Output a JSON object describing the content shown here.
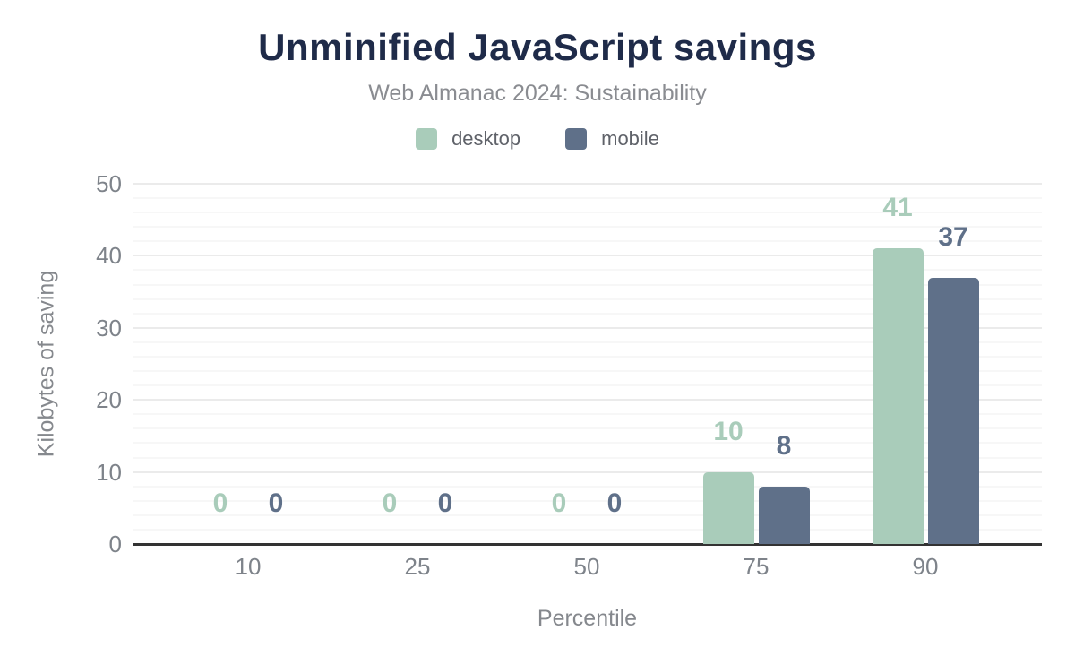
{
  "chart_data": {
    "type": "bar",
    "title": "Unminified JavaScript savings",
    "subtitle": "Web Almanac 2024: Sustainability",
    "categories": [
      "10",
      "25",
      "50",
      "75",
      "90"
    ],
    "series": [
      {
        "name": "desktop",
        "color": "#a9ccba",
        "values": [
          0,
          0,
          0,
          10,
          41
        ]
      },
      {
        "name": "mobile",
        "color": "#5f7089",
        "values": [
          0,
          0,
          0,
          8,
          37
        ]
      }
    ],
    "xlabel": "Percentile",
    "ylabel": "Kilobytes of saving",
    "ylim": [
      0,
      50
    ],
    "yticks": [
      0,
      10,
      20,
      30,
      40,
      50
    ],
    "minor_grid_step": 2,
    "grid": "horizontal",
    "legend_position": "top",
    "value_labels": true
  },
  "colors": {
    "title": "#1f2b49",
    "subtitle": "#8a8c91",
    "legend_text": "#5f6269",
    "axis_text": "#7e838a",
    "axis_title_text": "#85888d",
    "baseline": "#333333",
    "grid_major": "#ebebeb",
    "grid_minor": "#f7f7f7",
    "background": "#ffffff"
  }
}
